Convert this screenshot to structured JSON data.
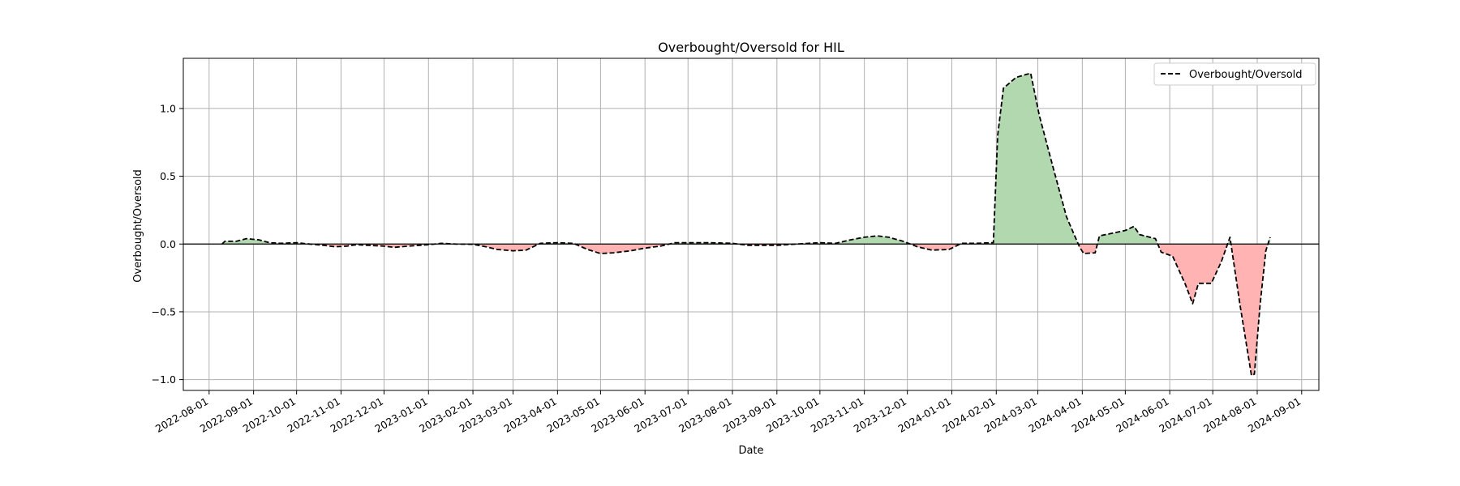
{
  "chart_data": {
    "type": "area",
    "title": "Overbought/Oversold for HIL",
    "xlabel": "Date",
    "ylabel": "Overbought/Oversold",
    "x_tick_labels": [
      "2022-08-01",
      "2022-09-01",
      "2022-10-01",
      "2022-11-01",
      "2022-12-01",
      "2023-01-01",
      "2023-02-01",
      "2023-03-01",
      "2023-04-01",
      "2023-05-01",
      "2023-06-01",
      "2023-07-01",
      "2023-08-01",
      "2023-09-01",
      "2023-10-01",
      "2023-11-01",
      "2023-12-01",
      "2024-01-01",
      "2024-02-01",
      "2024-03-01",
      "2024-04-01",
      "2024-05-01",
      "2024-06-01",
      "2024-07-01",
      "2024-08-01",
      "2024-09-01"
    ],
    "y_ticks": [
      "1.0",
      "0.5",
      "0.0",
      "−0.5",
      "−1.0"
    ],
    "y_tick_values": [
      1.0,
      0.5,
      0.0,
      -0.5,
      -1.0
    ],
    "xlim": [
      "2022-07-14",
      "2024-09-13"
    ],
    "ylim": [
      -1.08,
      1.37
    ],
    "grid": true,
    "legend": {
      "position": "top-right",
      "label": "Overbought/Oversold"
    },
    "baseline": 0.0,
    "colors": {
      "line": "#000000",
      "positive_fill": "#b2d8b0",
      "negative_fill": "#ffb3b2",
      "grid": "#b0b0b0",
      "baseline": "#000000"
    },
    "series": [
      {
        "name": "Overbought/Oversold",
        "style": "dashed",
        "points": [
          [
            "2022-08-10",
            0.0
          ],
          [
            "2022-08-12",
            0.02
          ],
          [
            "2022-08-20",
            0.02
          ],
          [
            "2022-08-27",
            0.04
          ],
          [
            "2022-09-05",
            0.03
          ],
          [
            "2022-09-12",
            0.01
          ],
          [
            "2022-09-20",
            0.005
          ],
          [
            "2022-10-01",
            0.01
          ],
          [
            "2022-10-10",
            0.0
          ],
          [
            "2022-10-20",
            -0.01
          ],
          [
            "2022-10-28",
            -0.02
          ],
          [
            "2022-11-05",
            -0.015
          ],
          [
            "2022-11-12",
            -0.005
          ],
          [
            "2022-11-20",
            -0.01
          ],
          [
            "2022-12-01",
            -0.015
          ],
          [
            "2022-12-08",
            -0.025
          ],
          [
            "2022-12-18",
            -0.015
          ],
          [
            "2023-01-01",
            -0.005
          ],
          [
            "2023-01-10",
            0.005
          ],
          [
            "2023-01-20",
            0.0
          ],
          [
            "2023-02-01",
            -0.002
          ],
          [
            "2023-02-10",
            -0.02
          ],
          [
            "2023-02-18",
            -0.04
          ],
          [
            "2023-03-01",
            -0.05
          ],
          [
            "2023-03-10",
            -0.045
          ],
          [
            "2023-03-20",
            0.005
          ],
          [
            "2023-04-01",
            0.01
          ],
          [
            "2023-04-12",
            0.005
          ],
          [
            "2023-04-22",
            -0.04
          ],
          [
            "2023-05-01",
            -0.07
          ],
          [
            "2023-05-10",
            -0.065
          ],
          [
            "2023-05-22",
            -0.05
          ],
          [
            "2023-06-01",
            -0.03
          ],
          [
            "2023-06-12",
            -0.015
          ],
          [
            "2023-06-22",
            0.01
          ],
          [
            "2023-07-01",
            0.01
          ],
          [
            "2023-07-15",
            0.01
          ],
          [
            "2023-08-01",
            0.005
          ],
          [
            "2023-08-12",
            -0.01
          ],
          [
            "2023-09-01",
            -0.01
          ],
          [
            "2023-09-15",
            0.0
          ],
          [
            "2023-10-01",
            0.01
          ],
          [
            "2023-10-12",
            0.005
          ],
          [
            "2023-10-22",
            0.03
          ],
          [
            "2023-11-01",
            0.05
          ],
          [
            "2023-11-10",
            0.06
          ],
          [
            "2023-11-18",
            0.05
          ],
          [
            "2023-11-28",
            0.02
          ],
          [
            "2023-12-08",
            -0.02
          ],
          [
            "2023-12-18",
            -0.045
          ],
          [
            "2023-12-30",
            -0.04
          ],
          [
            "2024-01-08",
            0.005
          ],
          [
            "2024-01-18",
            0.005
          ],
          [
            "2024-01-30",
            0.01
          ],
          [
            "2024-02-02",
            0.8
          ],
          [
            "2024-02-06",
            1.15
          ],
          [
            "2024-02-15",
            1.23
          ],
          [
            "2024-02-25",
            1.26
          ],
          [
            "2024-03-02",
            0.95
          ],
          [
            "2024-03-12",
            0.55
          ],
          [
            "2024-03-21",
            0.2
          ],
          [
            "2024-03-30",
            -0.02
          ],
          [
            "2024-04-02",
            -0.07
          ],
          [
            "2024-04-10",
            -0.065
          ],
          [
            "2024-04-13",
            0.06
          ],
          [
            "2024-04-22",
            0.08
          ],
          [
            "2024-05-01",
            0.1
          ],
          [
            "2024-05-07",
            0.13
          ],
          [
            "2024-05-11",
            0.07
          ],
          [
            "2024-05-22",
            0.04
          ],
          [
            "2024-05-26",
            -0.06
          ],
          [
            "2024-06-03",
            -0.09
          ],
          [
            "2024-06-12",
            -0.3
          ],
          [
            "2024-06-17",
            -0.44
          ],
          [
            "2024-06-21",
            -0.29
          ],
          [
            "2024-06-30",
            -0.29
          ],
          [
            "2024-07-07",
            -0.13
          ],
          [
            "2024-07-13",
            0.05
          ],
          [
            "2024-07-20",
            -0.45
          ],
          [
            "2024-07-28",
            -0.97
          ],
          [
            "2024-07-30",
            -0.96
          ],
          [
            "2024-08-03",
            -0.45
          ],
          [
            "2024-08-07",
            -0.05
          ],
          [
            "2024-08-10",
            0.05
          ]
        ]
      }
    ]
  }
}
